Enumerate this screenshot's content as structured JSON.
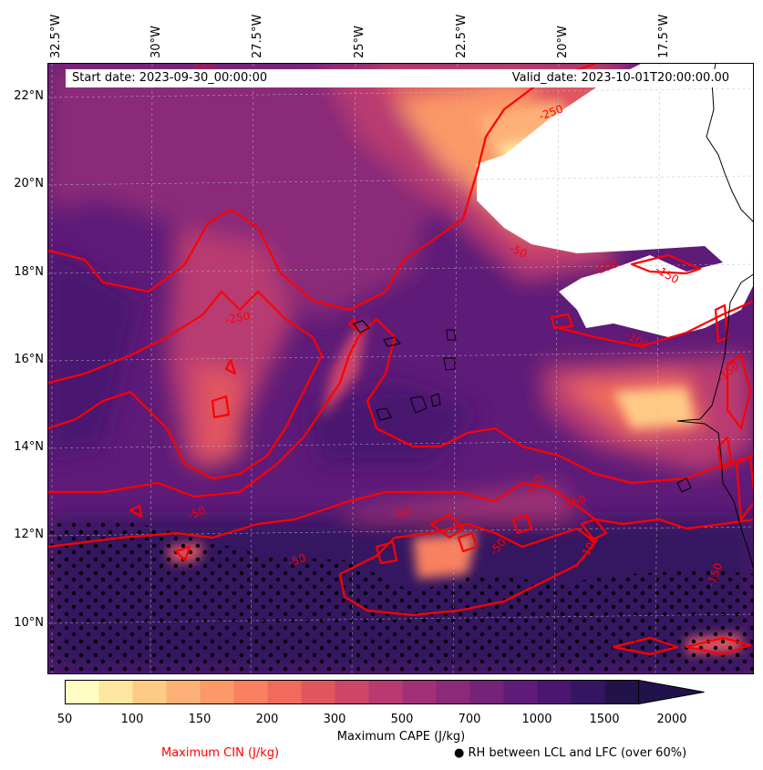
{
  "map": {
    "header": {
      "start_date": "Start date: 2023-09-30_00:00:00",
      "valid_date": "Valid_date: 2023-10-01T20:00:00.00"
    },
    "longitude_labels": [
      "32.5°W",
      "30°W",
      "27.5°W",
      "25°W",
      "22.5°W",
      "20°W",
      "17.5°W"
    ],
    "latitude_labels": [
      "22°N",
      "20°N",
      "18°N",
      "16°N",
      "14°N",
      "12°N",
      "10°N"
    ],
    "cin_contour_labels": [
      "-250",
      "-250",
      "-250",
      "-50",
      "-100",
      "-150",
      "-100",
      "-150",
      "-50",
      "-150",
      "-50",
      "-50",
      "-150",
      "-100",
      "-150",
      "-50"
    ],
    "colors": {
      "cin_contour": "#ff0000",
      "coastline": "#000000",
      "stipple": "#000000"
    }
  },
  "colorbar": {
    "tick_labels": [
      "50",
      "100",
      "150",
      "200",
      "300",
      "500",
      "700",
      "1000",
      "1500",
      "2000"
    ],
    "colors": [
      "#fffdc2",
      "#fee5a0",
      "#fecb86",
      "#feb177",
      "#fc9967",
      "#f98060",
      "#f06b5b",
      "#e15560",
      "#cd4569",
      "#b83a71",
      "#a03176",
      "#8a2a78",
      "#732378",
      "#5e1b78",
      "#4a1670",
      "#351461",
      "#22124a"
    ],
    "label": "Maximum CAPE (J/kg)"
  },
  "legend": {
    "cin_label": "Maximum CIN (J/kg)",
    "rh_label": "● RH between LCL and LFC (over 60%)"
  }
}
